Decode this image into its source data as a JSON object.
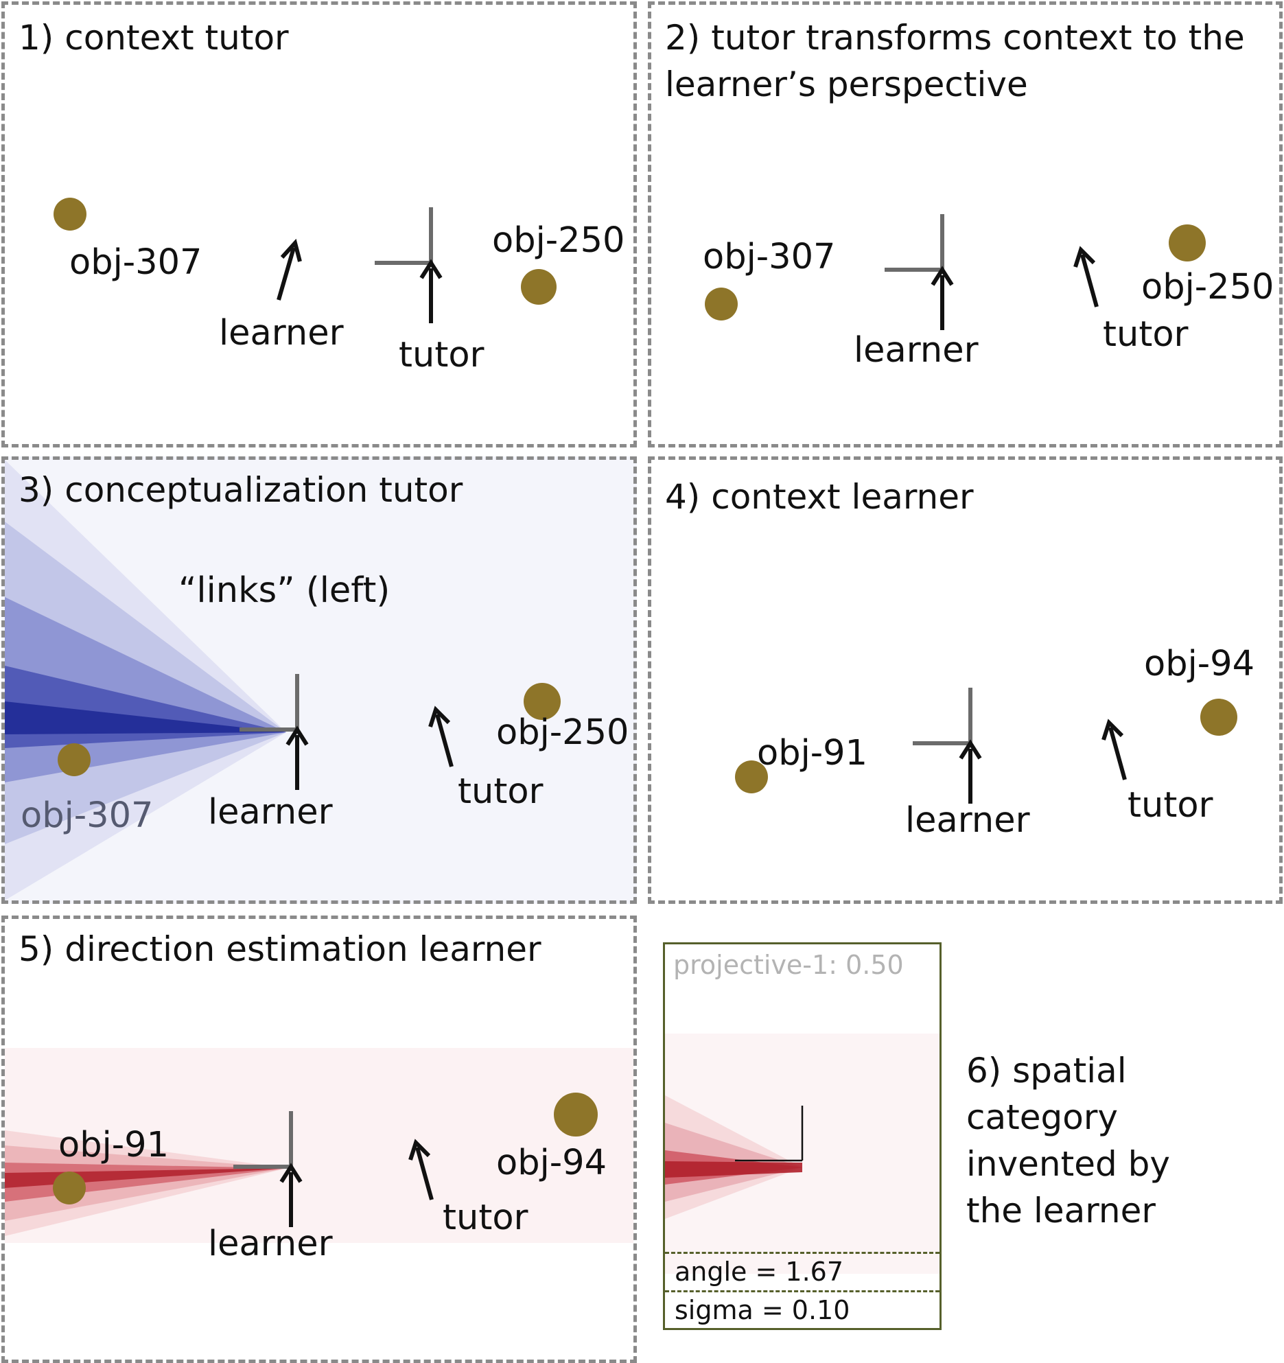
{
  "colors": {
    "object_dot": "#8e7529",
    "arrow": "#111111",
    "frame_axes": "#6b6b6b",
    "panel_border": "#8a8a8a",
    "conceptualization_heatmap": "#2e3aa3",
    "estimation_heatmap": "#b0202b",
    "category_card_border": "#56602b"
  },
  "panels": {
    "p1": {
      "title": "1) context tutor",
      "labels": {
        "obj_a": "obj-307",
        "obj_b": "obj-250",
        "learner": "learner",
        "tutor": "tutor"
      }
    },
    "p2": {
      "title": "2) tutor transforms context to the\nlearner’s perspective",
      "labels": {
        "obj_a": "obj-307",
        "obj_b": "obj-250",
        "learner": "learner",
        "tutor": "tutor"
      }
    },
    "p3": {
      "title": "3) conceptualization tutor",
      "utterance": "“links” (left)",
      "labels": {
        "obj_a": "obj-307",
        "obj_b": "obj-250",
        "learner": "learner",
        "tutor": "tutor"
      }
    },
    "p4": {
      "title": "4) context learner",
      "labels": {
        "obj_a": "obj-91",
        "obj_b": "obj-94",
        "learner": "learner",
        "tutor": "tutor"
      }
    },
    "p5": {
      "title": "5) direction estimation learner",
      "labels": {
        "obj_a": "obj-91",
        "obj_b": "obj-94",
        "learner": "learner",
        "tutor": "tutor"
      }
    },
    "p6": {
      "caption": "6) spatial category\ninvented by\nthe learner",
      "category": {
        "name": "projective-1: 0.50",
        "angle": "angle = 1.67",
        "sigma": "sigma = 0.10"
      }
    }
  }
}
